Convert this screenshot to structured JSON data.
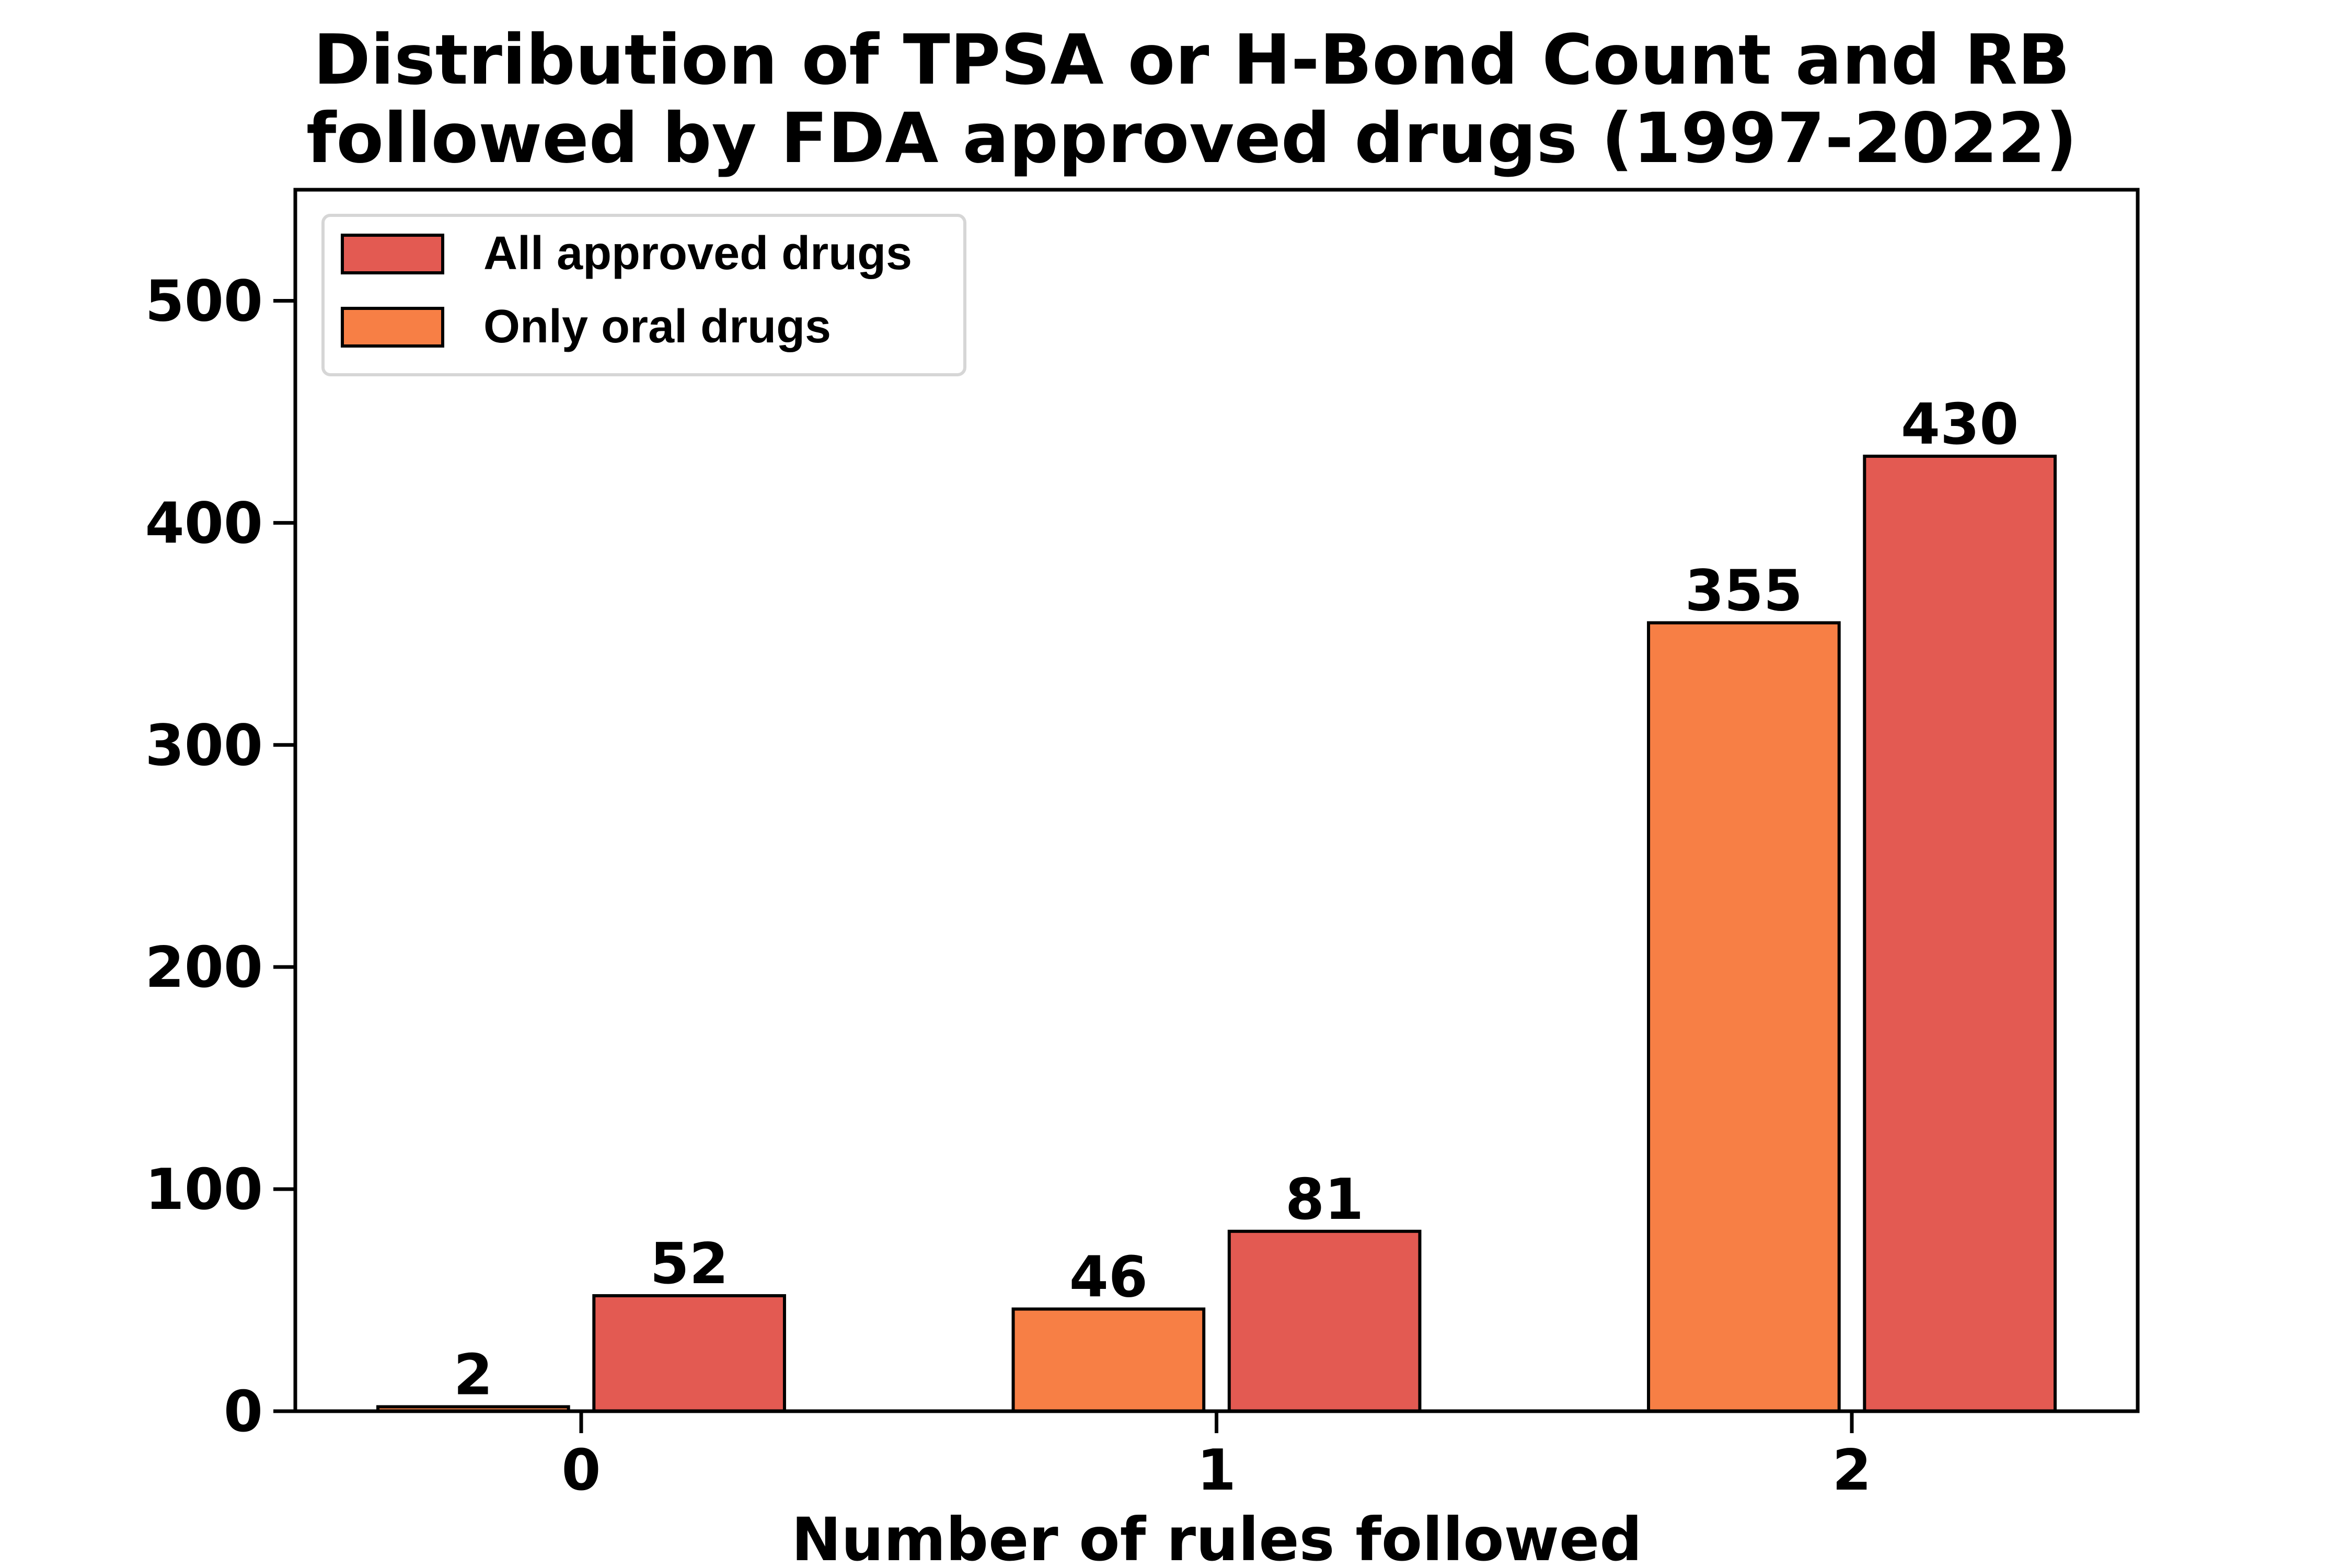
{
  "chart_data": {
    "type": "bar",
    "title_lines": [
      "Distribution of TPSA or H-Bond Count and RB",
      "followed by FDA approved drugs (1997-2022)"
    ],
    "xlabel": "Number of rules followed",
    "ylabel": "",
    "categories": [
      "0",
      "1",
      "2"
    ],
    "ylim": [
      0,
      550
    ],
    "yticks": [
      0,
      100,
      200,
      300,
      400,
      500
    ],
    "grid": false,
    "legend_position": "top-left",
    "series": [
      {
        "name": "Only oral drugs",
        "color": "#f77f45",
        "values": [
          2,
          46,
          355
        ]
      },
      {
        "name": "All approved drugs",
        "color": "#e35a52",
        "values": [
          52,
          81,
          430
        ]
      }
    ],
    "legend_order": [
      "All approved drugs",
      "Only oral drugs"
    ],
    "value_labels": [
      [
        "2",
        "46",
        "355"
      ],
      [
        "52",
        "81",
        "430"
      ]
    ],
    "tick_labels": [
      "0",
      "100",
      "200",
      "300",
      "400",
      "500"
    ]
  }
}
